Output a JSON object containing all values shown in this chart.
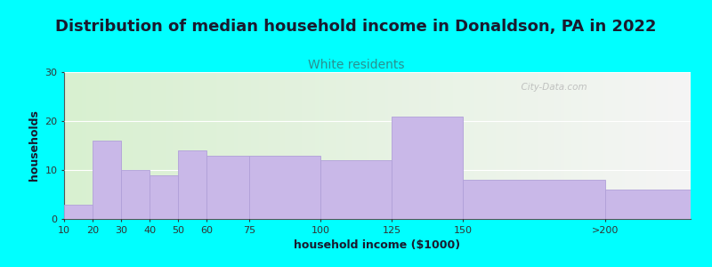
{
  "title": "Distribution of median household income in Donaldson, PA in 2022",
  "subtitle": "White residents",
  "xlabel": "household income ($1000)",
  "ylabel": "households",
  "background_color": "#00FFFF",
  "plot_bg_left": "#d8f0d0",
  "plot_bg_right": "#f5f5f5",
  "bar_color": "#c9b8e8",
  "bar_edge_color": "#b0a0d8",
  "categories": [
    "10",
    "20",
    "30",
    "40",
    "50",
    "60",
    "75",
    "100",
    "125",
    "150",
    ">200"
  ],
  "values": [
    3,
    16,
    10,
    9,
    14,
    13,
    13,
    12,
    21,
    8,
    6
  ],
  "ylim": [
    0,
    30
  ],
  "yticks": [
    0,
    10,
    20,
    30
  ],
  "title_fontsize": 13,
  "subtitle_fontsize": 10,
  "subtitle_color": "#2a9090",
  "axis_label_fontsize": 9,
  "tick_fontsize": 8,
  "watermark": "  City-Data.com"
}
